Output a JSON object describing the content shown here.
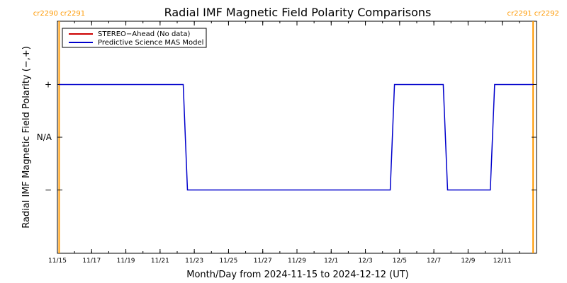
{
  "chart_data": {
    "type": "line",
    "title": "Radial IMF Magnetic Field Polarity Comparisons",
    "xlabel": "Month/Day from 2024-11-15 to 2024-12-12 (UT)",
    "ylabel": "Radial IMF Magnetic Field Polarity (−,+)",
    "xlim": [
      0,
      28
    ],
    "ylim": [
      -2.2,
      2.2
    ],
    "x_ticks": [
      {
        "x": 0,
        "label": "11/15"
      },
      {
        "x": 2,
        "label": "11/17"
      },
      {
        "x": 4,
        "label": "11/19"
      },
      {
        "x": 6,
        "label": "11/21"
      },
      {
        "x": 8,
        "label": "11/23"
      },
      {
        "x": 10,
        "label": "11/25"
      },
      {
        "x": 12,
        "label": "11/27"
      },
      {
        "x": 14,
        "label": "11/29"
      },
      {
        "x": 16,
        "label": "12/1"
      },
      {
        "x": 18,
        "label": "12/3"
      },
      {
        "x": 20,
        "label": "12/5"
      },
      {
        "x": 22,
        "label": "12/7"
      },
      {
        "x": 24,
        "label": "12/9"
      },
      {
        "x": 26,
        "label": "12/11"
      }
    ],
    "y_ticks": [
      {
        "y": 1,
        "label": "+"
      },
      {
        "y": 0,
        "label": "N/A"
      },
      {
        "y": -1,
        "label": "−"
      }
    ],
    "series": [
      {
        "name": "STEREO−Ahead (No data)",
        "color": "#cc0000",
        "x": [],
        "y": []
      },
      {
        "name": "Predictive Science MAS Model",
        "color": "#0000cc",
        "x": [
          0.1,
          7.35,
          7.6,
          19.45,
          19.7,
          22.55,
          22.8,
          25.3,
          25.55,
          27.8
        ],
        "y": [
          1,
          1,
          -1,
          -1,
          1,
          1,
          -1,
          -1,
          1,
          1
        ]
      }
    ],
    "carrington_markers": [
      {
        "x": 0.1,
        "labels": [
          "cr2290",
          "cr2291"
        ],
        "side": "left"
      },
      {
        "x": 27.8,
        "labels": [
          "cr2291",
          "cr2292"
        ],
        "side": "right"
      }
    ],
    "marker_color": "#ff9900",
    "legend_position": "top-left",
    "grid": false
  }
}
